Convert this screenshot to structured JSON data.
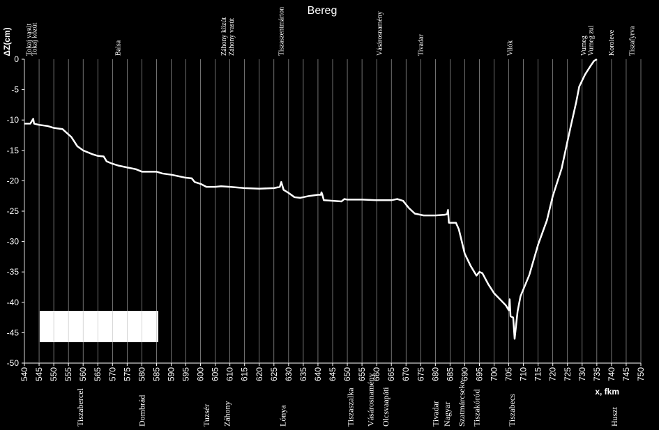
{
  "chart_data": {
    "type": "line",
    "title": "Bereg",
    "ylabel": "ΔZ(cm)",
    "xlabel": "x, fkm",
    "xlim": [
      540,
      750
    ],
    "ylim": [
      -50,
      0
    ],
    "xticks": [
      540,
      545,
      550,
      555,
      560,
      565,
      570,
      575,
      580,
      585,
      590,
      595,
      600,
      605,
      610,
      615,
      620,
      625,
      630,
      635,
      640,
      645,
      650,
      655,
      660,
      665,
      670,
      675,
      680,
      685,
      690,
      695,
      700,
      705,
      710,
      715,
      720,
      725,
      730,
      735,
      740,
      745,
      750
    ],
    "yticks": [
      0,
      -5,
      -10,
      -15,
      -20,
      -25,
      -30,
      -35,
      -40,
      -45,
      -50
    ],
    "grid": true,
    "top_annotations": [
      {
        "text": "Tokaj vasút",
        "x": 541.5
      },
      {
        "text": "Tokaj közút",
        "x": 543.5
      },
      {
        "text": "Balsa",
        "x": 572
      },
      {
        "text": "Záhony közút",
        "x": 608
      },
      {
        "text": "Záhony vasút",
        "x": 610.5
      },
      {
        "text": "Tiszaszentmárton",
        "x": 627.5
      },
      {
        "text": "Vásárosnamény",
        "x": 661
      },
      {
        "text": "Tivadar",
        "x": 675
      },
      {
        "text": "Vilók",
        "x": 705.5
      },
      {
        "text": "Vumeg",
        "x": 730.5
      },
      {
        "text": "Vumeg zul",
        "x": 733
      },
      {
        "text": "Koroleve",
        "x": 740
      },
      {
        "text": "Tiszafyrva",
        "x": 747
      }
    ],
    "bottom_annotations": [
      {
        "text": "Tiszabercel",
        "x": 559
      },
      {
        "text": "Dombrád",
        "x": 580
      },
      {
        "text": "Tuzsér",
        "x": 602
      },
      {
        "text": "Záhony",
        "x": 609
      },
      {
        "text": "Lónya",
        "x": 628
      },
      {
        "text": "Tiszaszalka",
        "x": 651
      },
      {
        "text": "Vásárosnamény",
        "x": 658
      },
      {
        "text": "Olcsvaapáti",
        "x": 663
      },
      {
        "text": "Tivadar",
        "x": 680
      },
      {
        "text": "Nagyar",
        "x": 684
      },
      {
        "text": "Szatmárcseke",
        "x": 689
      },
      {
        "text": "Tiszakóród",
        "x": 694
      },
      {
        "text": "Tiszabecs",
        "x": 706
      },
      {
        "text": "Huszt",
        "x": 741
      }
    ],
    "series": [
      {
        "color": "#ffffff",
        "x": [
          540,
          542,
          543,
          543.3,
          545,
          548,
          550,
          553,
          556,
          558,
          560,
          563,
          565,
          567,
          568,
          570,
          572,
          575,
          578,
          580,
          583,
          585,
          587,
          590,
          593,
          595,
          597,
          598,
          600,
          602,
          605,
          607,
          610,
          615,
          620,
          625,
          627,
          627.5,
          628.3,
          630,
          632,
          634,
          637,
          640,
          641,
          641.2,
          641.5,
          642,
          645,
          648,
          649,
          650,
          655,
          660,
          665,
          667,
          669,
          671,
          673,
          676,
          680,
          683,
          684,
          684.3,
          684.6,
          687,
          688,
          689,
          690,
          692,
          694,
          695,
          696,
          698,
          700,
          702,
          704,
          705,
          705.3,
          705.6,
          706.5,
          707,
          708,
          709,
          712,
          715,
          718,
          720,
          723,
          725,
          726,
          728,
          729,
          731,
          733,
          734,
          735
        ],
        "values": [
          -10.6,
          -10.6,
          -9.8,
          -10.6,
          -10.8,
          -11.0,
          -11.3,
          -11.5,
          -12.8,
          -14.3,
          -15.0,
          -15.6,
          -15.9,
          -16.0,
          -16.8,
          -17.2,
          -17.5,
          -17.8,
          -18.1,
          -18.5,
          -18.5,
          -18.5,
          -18.8,
          -19.0,
          -19.3,
          -19.5,
          -19.6,
          -20.2,
          -20.5,
          -21.0,
          -21.0,
          -20.9,
          -21.0,
          -21.2,
          -21.3,
          -21.2,
          -21.0,
          -20.2,
          -21.5,
          -22.0,
          -22.7,
          -22.8,
          -22.5,
          -22.3,
          -22.3,
          -21.9,
          -22.3,
          -23.2,
          -23.3,
          -23.4,
          -23.0,
          -23.1,
          -23.1,
          -23.2,
          -23.2,
          -23.0,
          -23.3,
          -24.5,
          -25.4,
          -25.7,
          -25.7,
          -25.6,
          -25.5,
          -24.8,
          -26.9,
          -26.9,
          -28,
          -30,
          -32,
          -34,
          -35.6,
          -35.0,
          -35.2,
          -37.0,
          -38.5,
          -39.5,
          -40.5,
          -41.3,
          -39.5,
          -42.3,
          -42.5,
          -46.0,
          -41.5,
          -39.0,
          -35.5,
          -30.5,
          -26.5,
          -22.5,
          -18.0,
          -13.5,
          -11.3,
          -7,
          -4.5,
          -2.5,
          -1.0,
          -0.3,
          0
        ]
      }
    ]
  }
}
